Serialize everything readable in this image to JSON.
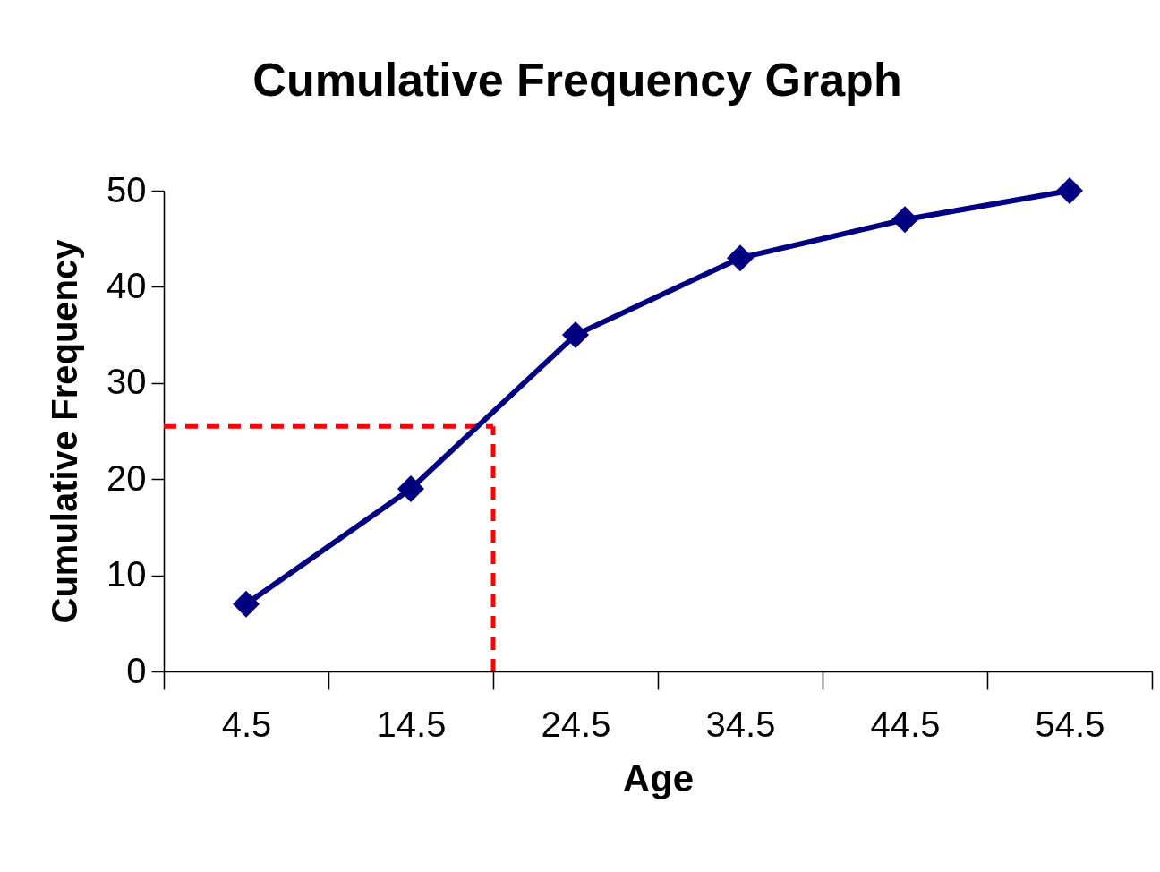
{
  "chart_data": {
    "type": "line",
    "title": "Cumulative Frequency Graph",
    "xlabel": "Age",
    "ylabel": "Cumulative Frequency",
    "x": [
      4.5,
      14.5,
      24.5,
      34.5,
      44.5,
      54.5
    ],
    "series": [
      {
        "color": "#000080",
        "values": [
          7,
          19,
          35,
          43,
          47,
          50
        ]
      }
    ],
    "xlim": [
      -0.5,
      59.5
    ],
    "xticks": [
      4.5,
      14.5,
      24.5,
      34.5,
      44.5,
      54.5
    ],
    "ylim": [
      0,
      50
    ],
    "yticks": [
      0,
      10,
      20,
      30,
      40,
      50
    ],
    "grid": false,
    "marker": "diamond",
    "line_style": "solid",
    "ref_lines": [
      {
        "axis": "x",
        "value": 19.5,
        "color": "#ff0000",
        "line_style": "dashed"
      },
      {
        "axis": "y",
        "value": 25.5,
        "color": "#ff0000",
        "line_style": "dashed"
      }
    ]
  }
}
